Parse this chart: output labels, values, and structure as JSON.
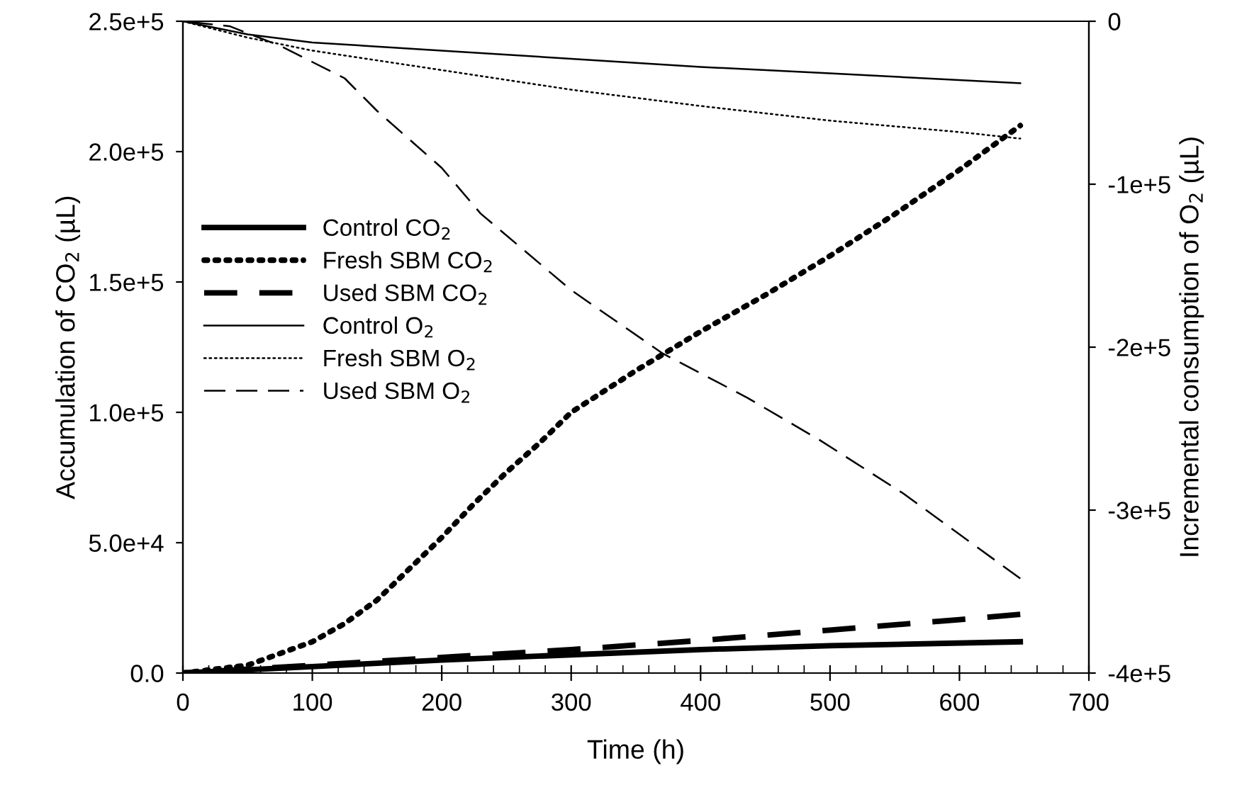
{
  "chart_data": {
    "type": "line",
    "xlabel": "Time (h)",
    "ylabel": "Accumulation of CO$_{2}$ (µL)",
    "y2label": "Incremental consumption of O$_{2}$ (µL)",
    "xlim": [
      0,
      700
    ],
    "xticks": [
      0,
      100,
      200,
      300,
      400,
      500,
      600,
      700
    ],
    "ylim": [
      0,
      250000
    ],
    "yticks": [
      {
        "value": 0,
        "label": "0.0"
      },
      {
        "value": 50000,
        "label": "5.0e+4"
      },
      {
        "value": 100000,
        "label": "1.0e+5"
      },
      {
        "value": 150000,
        "label": "1.5e+5"
      },
      {
        "value": 200000,
        "label": "2.0e+5"
      },
      {
        "value": 250000,
        "label": "2.5e+5"
      }
    ],
    "y2lim": [
      -400000,
      0
    ],
    "y2ticks": [
      {
        "value": -400000,
        "label": "-4e+5"
      },
      {
        "value": -300000,
        "label": "-3e+5"
      },
      {
        "value": -200000,
        "label": "-2e+5"
      },
      {
        "value": -100000,
        "label": "-1e+5"
      },
      0
    ],
    "legend": "left",
    "grid": false,
    "marker": "none",
    "series": [
      {
        "name": "Control CO$_{2}$",
        "color": "#000000",
        "line_style": "solid",
        "x": [
          0,
          100,
          200,
          300,
          400,
          500,
          647
        ],
        "values": [
          0,
          2500,
          5000,
          7000,
          9000,
          10500,
          12000
        ]
      },
      {
        "name": "Fresh SBM CO$_{2}$",
        "color": "#000000",
        "line_style": "dotted",
        "x": [
          0,
          50,
          100,
          125,
          150,
          175,
          200,
          225,
          250,
          275,
          300,
          350,
          400,
          450,
          500,
          550,
          600,
          647
        ],
        "values": [
          0,
          3000,
          12000,
          19000,
          28000,
          40000,
          52000,
          65000,
          77000,
          88000,
          100000,
          116000,
          131000,
          145000,
          160000,
          176000,
          193000,
          210000
        ]
      },
      {
        "name": "Used SBM CO$_{2}$",
        "color": "#000000",
        "line_style": "dashed",
        "x": [
          0,
          100,
          200,
          300,
          400,
          500,
          600,
          647
        ],
        "values": [
          0,
          3000,
          6000,
          9000,
          12500,
          16500,
          20500,
          22500
        ]
      },
      {
        "name": "Control O$_{2}$",
        "color": "#000000",
        "line_style": "solid",
        "axis": "y2",
        "x": [
          0,
          50,
          100,
          200,
          300,
          400,
          500,
          647
        ],
        "values": [
          0,
          -8000,
          -13000,
          -18000,
          -23000,
          -28000,
          -32000,
          -38000
        ]
      },
      {
        "name": "Fresh SBM O$_{2}$",
        "color": "#000000",
        "line_style": "dotted",
        "axis": "y2",
        "x": [
          0,
          50,
          100,
          200,
          300,
          400,
          500,
          600,
          647
        ],
        "values": [
          0,
          -10000,
          -18000,
          -30000,
          -42000,
          -52000,
          -61000,
          -68000,
          -72000
        ]
      },
      {
        "name": "Used SBM O$_{2}$",
        "color": "#000000",
        "line_style": "dashed",
        "axis": "y2",
        "x": [
          0,
          36,
          75,
          100,
          125,
          150,
          200,
          230,
          300,
          371,
          436,
          492,
          557,
          647
        ],
        "values": [
          0,
          -3000,
          -15000,
          -25000,
          -35000,
          -55000,
          -90000,
          -118000,
          -165000,
          -204000,
          -231000,
          -257000,
          -290000,
          -342000
        ]
      }
    ]
  }
}
